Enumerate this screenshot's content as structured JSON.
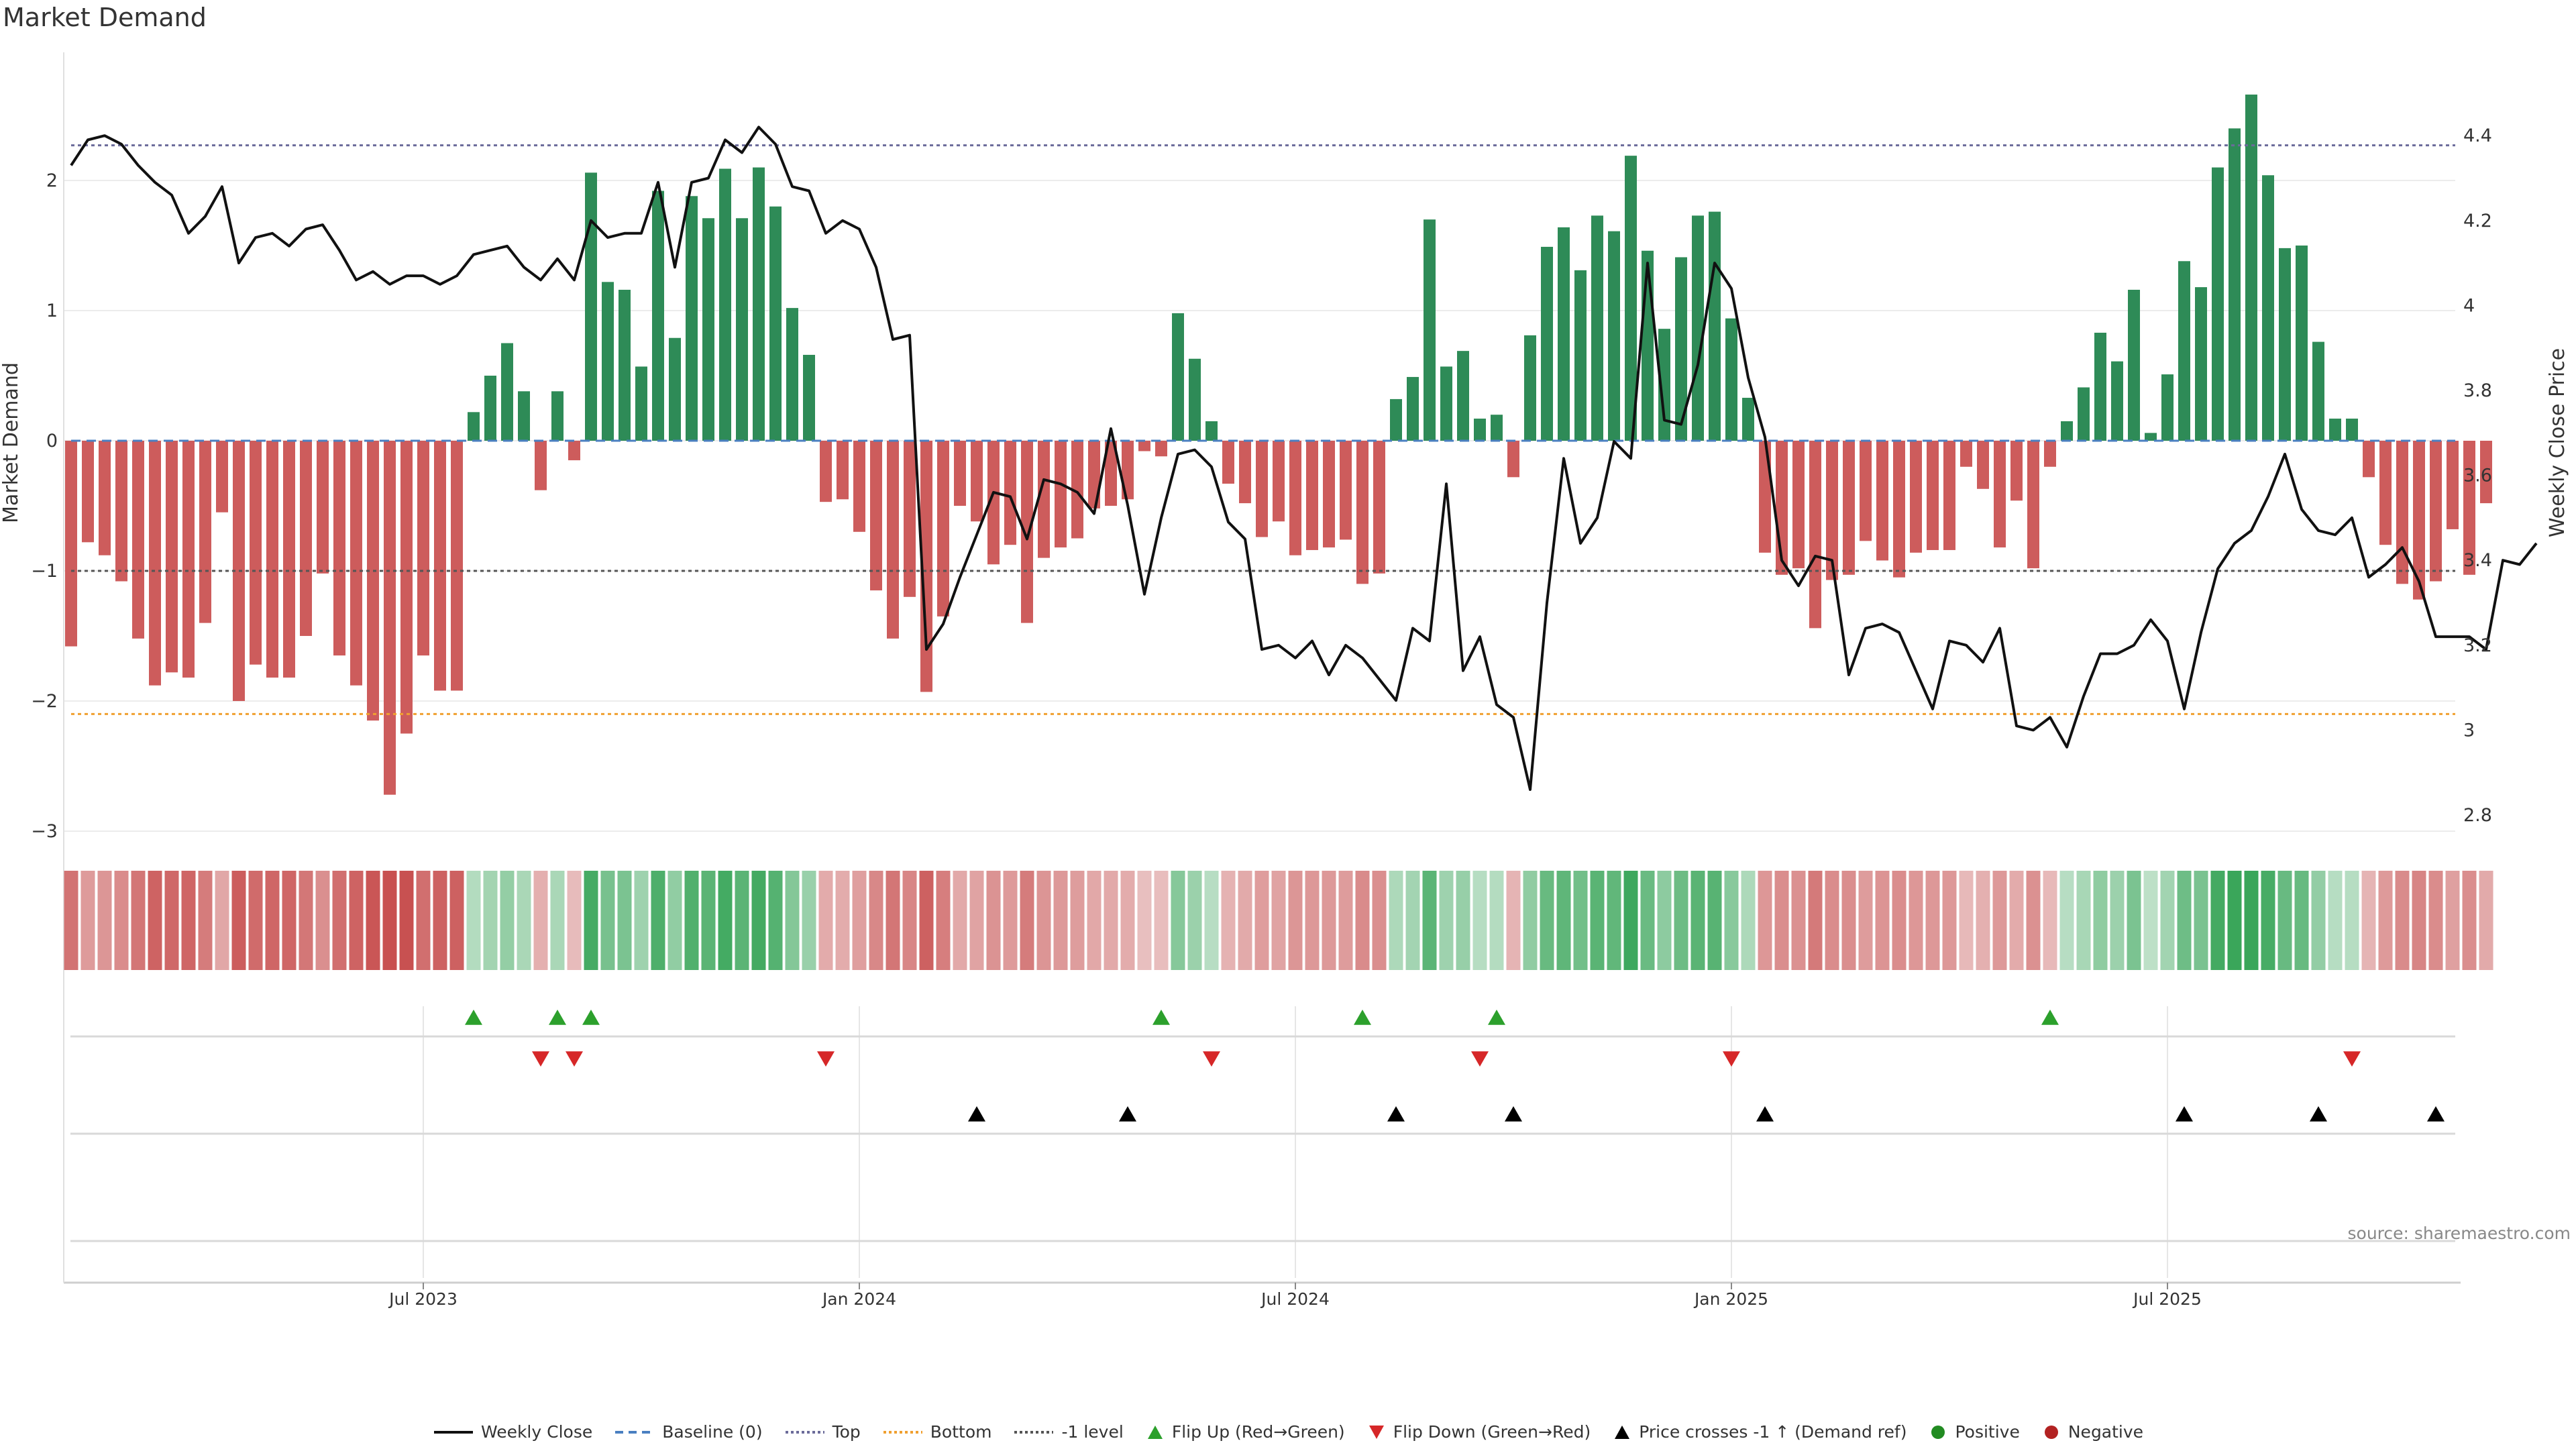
{
  "title": "Market Demand",
  "source_label": "source: sharemaestro.com",
  "colors": {
    "positive": "#2e8b57",
    "negative": "#cd5c5c",
    "line": "#111111",
    "top": "#6b6b9a",
    "bottom": "#f0a030",
    "minus1": "#555555",
    "flip_up": "#2ca02c",
    "flip_down": "#d62728",
    "cross": "#000000"
  },
  "legend": [
    {
      "label": "Weekly Close",
      "kind": "line",
      "color": "#111111"
    },
    {
      "label": "Baseline (0)",
      "kind": "dash",
      "color": "#4a7fc1"
    },
    {
      "label": "Top",
      "kind": "dot",
      "color": "#6b6b9a"
    },
    {
      "label": "Bottom",
      "kind": "dot",
      "color": "#f0a030"
    },
    {
      "label": "-1 level",
      "kind": "dot",
      "color": "#555555"
    },
    {
      "label": "Flip Up (Red→Green)",
      "kind": "tri-up",
      "color": "#2ca02c"
    },
    {
      "label": "Flip Down (Green→Red)",
      "kind": "tri-down",
      "color": "#d62728"
    },
    {
      "label": "Price crosses -1 ↑ (Demand ref)",
      "kind": "tri-up",
      "color": "#000000"
    },
    {
      "label": "Positive",
      "kind": "circle",
      "color": "#228b22"
    },
    {
      "label": "Negative",
      "kind": "circle",
      "color": "#b22222"
    }
  ],
  "chart_data": {
    "type": "bar+line",
    "title": "Market Demand",
    "ylabel_left": "Market Demand",
    "ylabel_right": "Weekly Close Price",
    "ylim_left": [
      -3.0,
      3.0
    ],
    "ylim_right": [
      2.78,
      4.6
    ],
    "yticks_left": [
      2,
      1,
      0,
      -1,
      -2,
      -3
    ],
    "ytick_labels_left": [
      "2",
      "1",
      "0",
      "−1",
      "−2",
      "−3"
    ],
    "yticks_right": [
      4.4,
      4.2,
      4.0,
      3.8,
      3.6,
      3.4,
      3.2,
      3.0,
      2.8
    ],
    "ytick_labels_right": [
      "4.4",
      "4.2",
      "4",
      "3.8",
      "3.6",
      "3.4",
      "3.2",
      "3",
      "2.8"
    ],
    "x_tick_weeks": [
      21,
      47,
      73,
      99,
      125
    ],
    "x_tick_labels": [
      "Jul 2023",
      "Jan 2024",
      "Jul 2024",
      "Jan 2025",
      "Jul 2025"
    ],
    "reference_lines": {
      "top": 2.27,
      "bottom": -2.1,
      "minus_one": -1.0,
      "baseline": 0
    },
    "demand": [
      -1.58,
      -0.78,
      -0.88,
      -1.08,
      -1.52,
      -1.88,
      -1.78,
      -1.82,
      -1.4,
      -0.55,
      -2.0,
      -1.72,
      -1.82,
      -1.82,
      -1.5,
      -1.02,
      -1.65,
      -1.88,
      -2.15,
      -2.72,
      -2.25,
      -1.65,
      -1.92,
      -1.92,
      0.22,
      0.5,
      0.75,
      0.38,
      -0.38,
      0.38,
      -0.15,
      2.06,
      1.22,
      1.16,
      0.57,
      1.92,
      0.79,
      1.88,
      1.71,
      2.09,
      1.71,
      2.1,
      1.8,
      1.02,
      0.66,
      -0.47,
      -0.45,
      -0.7,
      -1.15,
      -1.52,
      -1.2,
      -1.93,
      -1.35,
      -0.5,
      -0.62,
      -0.95,
      -0.8,
      -1.4,
      -0.9,
      -0.82,
      -0.75,
      -0.52,
      -0.5,
      -0.45,
      -0.08,
      -0.12,
      0.98,
      0.63,
      0.15,
      -0.33,
      -0.48,
      -0.74,
      -0.62,
      -0.88,
      -0.84,
      -0.82,
      -0.76,
      -1.1,
      -1.02,
      0.32,
      0.49,
      1.7,
      0.57,
      0.69,
      0.17,
      0.2,
      -0.28,
      0.81,
      1.49,
      1.64,
      1.31,
      1.73,
      1.61,
      2.19,
      1.46,
      0.86,
      1.41,
      1.73,
      1.76,
      0.94,
      0.33,
      -0.86,
      -1.03,
      -0.98,
      -1.44,
      -1.07,
      -1.03,
      -0.77,
      -0.92,
      -1.05,
      -0.86,
      -0.84,
      -0.84,
      -0.2,
      -0.37,
      -0.82,
      -0.46,
      -0.98,
      -0.2,
      0.15,
      0.41,
      0.83,
      0.61,
      1.16,
      0.06,
      0.51,
      1.38,
      1.18,
      2.1,
      2.4,
      2.66,
      2.04,
      1.48,
      1.5,
      0.76,
      0.17,
      0.17,
      -0.28,
      -0.8,
      -1.1,
      -1.22,
      -1.08,
      -0.68,
      -1.03,
      -0.48
    ],
    "close": [
      4.33,
      4.39,
      4.4,
      4.38,
      4.33,
      4.29,
      4.26,
      4.17,
      4.21,
      4.28,
      4.1,
      4.16,
      4.17,
      4.14,
      4.18,
      4.19,
      4.13,
      4.06,
      4.08,
      4.05,
      4.07,
      4.07,
      4.05,
      4.07,
      4.12,
      4.13,
      4.14,
      4.09,
      4.06,
      4.11,
      4.06,
      4.2,
      4.16,
      4.17,
      4.17,
      4.29,
      4.09,
      4.29,
      4.3,
      4.39,
      4.36,
      4.42,
      4.38,
      4.28,
      4.27,
      4.17,
      4.2,
      4.18,
      4.09,
      3.92,
      3.93,
      3.19,
      3.25,
      3.36,
      3.46,
      3.56,
      3.55,
      3.45,
      3.59,
      3.58,
      3.56,
      3.51,
      3.71,
      3.53,
      3.32,
      3.5,
      3.65,
      3.66,
      3.62,
      3.49,
      3.45,
      3.19,
      3.2,
      3.17,
      3.21,
      3.13,
      3.2,
      3.17,
      3.12,
      3.07,
      3.24,
      3.21,
      3.58,
      3.14,
      3.22,
      3.06,
      3.03,
      2.86,
      3.3,
      3.64,
      3.44,
      3.5,
      3.68,
      3.64,
      4.1,
      3.73,
      3.72,
      3.86,
      4.1,
      4.04,
      3.83,
      3.69,
      3.4,
      3.34,
      3.41,
      3.4,
      3.13,
      3.24,
      3.25,
      3.23,
      3.14,
      3.05,
      3.21,
      3.2,
      3.16,
      3.24,
      3.01,
      3.0,
      3.03,
      2.96,
      3.08,
      3.18,
      3.18,
      3.2,
      3.26,
      3.21,
      3.05,
      3.23,
      3.38,
      3.44,
      3.47,
      3.55,
      3.65,
      3.52,
      3.47,
      3.46,
      3.5,
      3.36,
      3.39,
      3.43,
      3.35,
      3.22,
      3.22,
      3.22,
      3.19,
      3.4,
      3.39,
      3.44
    ],
    "flip_up_weeks": [
      24,
      29,
      31,
      65,
      77,
      85,
      118
    ],
    "flip_down_weeks": [
      28,
      30,
      45,
      68,
      84,
      99,
      136
    ],
    "price_cross_weeks": [
      54,
      63,
      79,
      86,
      101,
      126,
      134,
      141
    ]
  }
}
